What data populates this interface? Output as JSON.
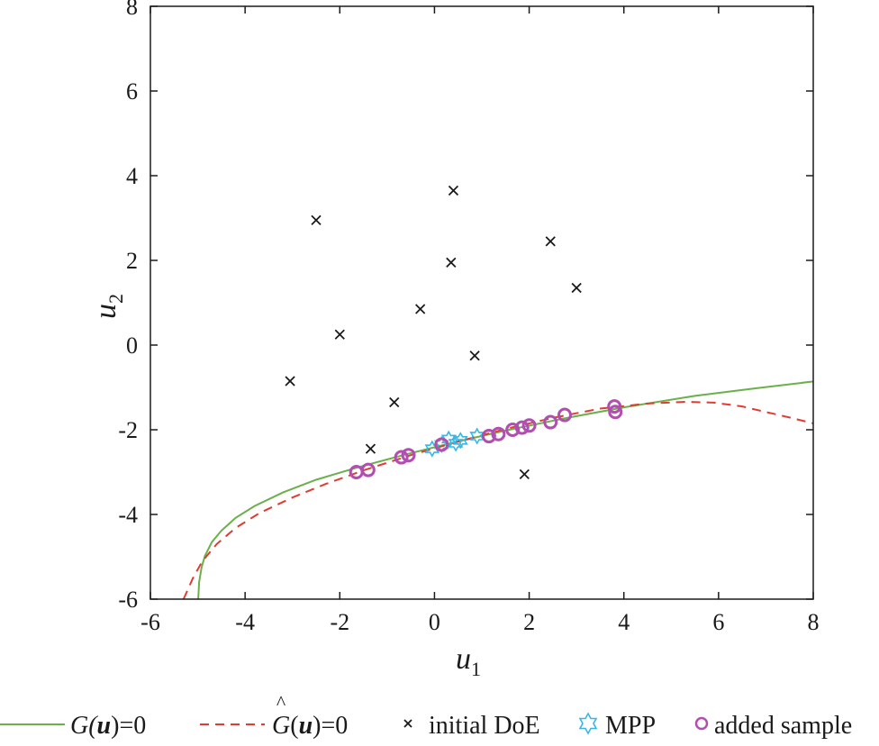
{
  "chart_data": {
    "type": "scatter",
    "xlabel": "u",
    "xlabel_sub": "1",
    "ylabel": "u",
    "ylabel_sub": "2",
    "xlim": [
      -6,
      8
    ],
    "ylim": [
      -6,
      8
    ],
    "xticks": [
      -6,
      -4,
      -2,
      0,
      2,
      4,
      6,
      8
    ],
    "yticks": [
      -6,
      -4,
      -2,
      0,
      2,
      4,
      6,
      8
    ],
    "xtick_labels": [
      "-6",
      "-4",
      "-2",
      "0",
      "2",
      "4",
      "6",
      "8"
    ],
    "ytick_labels": [
      "-6",
      "-4",
      "-2",
      "0",
      "2",
      "4",
      "6",
      "8"
    ],
    "grid": false,
    "legend_position": "bottom",
    "series": [
      {
        "name": "G(u)=0",
        "kind": "line",
        "style": "solid",
        "color": "#6ab04c",
        "x": [
          -4.99,
          -4.97,
          -4.92,
          -4.85,
          -4.7,
          -4.5,
          -4.2,
          -3.8,
          -3.2,
          -2.5,
          -1.6,
          -0.6,
          0.4,
          1.5,
          2.7,
          4.0,
          5.5,
          6.8,
          8.0
        ],
        "y": [
          -6.0,
          -5.6,
          -5.25,
          -4.98,
          -4.65,
          -4.38,
          -4.08,
          -3.8,
          -3.48,
          -3.18,
          -2.88,
          -2.58,
          -2.3,
          -2.02,
          -1.74,
          -1.47,
          -1.2,
          -1.02,
          -0.86
        ]
      },
      {
        "name": "Ĝ(u)=0",
        "kind": "line",
        "style": "dashed",
        "color": "#e03c31",
        "x": [
          -5.3,
          -5.1,
          -4.9,
          -4.6,
          -4.2,
          -3.7,
          -3.0,
          -2.3,
          -1.5,
          -0.5,
          0.5,
          1.5,
          2.5,
          3.5,
          4.5,
          5.3,
          5.9,
          6.5,
          7.0,
          7.5,
          8.0
        ],
        "y": [
          -6.0,
          -5.5,
          -5.1,
          -4.7,
          -4.32,
          -3.97,
          -3.6,
          -3.28,
          -2.96,
          -2.6,
          -2.28,
          -1.98,
          -1.72,
          -1.5,
          -1.38,
          -1.34,
          -1.36,
          -1.45,
          -1.58,
          -1.71,
          -1.85
        ]
      },
      {
        "name": "initial DoE",
        "kind": "marker",
        "marker": "x",
        "color": "#1a1a1a",
        "x": [
          0.4,
          -2.5,
          2.45,
          0.35,
          3.0,
          -0.3,
          -2.0,
          0.85,
          -3.05,
          -0.85,
          -1.35,
          1.9
        ],
        "y": [
          3.65,
          2.95,
          2.45,
          1.95,
          1.35,
          0.85,
          0.25,
          -0.25,
          -0.85,
          -1.35,
          -2.45,
          -3.05
        ]
      },
      {
        "name": "MPP",
        "kind": "marker",
        "marker": "hexagram",
        "color": "#35b8e6",
        "x": [
          -0.05,
          0.15,
          0.3,
          0.45,
          0.55,
          0.9
        ],
        "y": [
          -2.45,
          -2.35,
          -2.22,
          -2.32,
          -2.25,
          -2.15
        ]
      },
      {
        "name": "added sample",
        "kind": "marker",
        "marker": "circle",
        "color": "#b04fb0",
        "x": [
          -1.65,
          -1.4,
          -0.7,
          -0.55,
          0.15,
          1.15,
          1.35,
          1.65,
          1.85,
          2.0,
          2.45,
          2.75,
          3.8,
          3.82
        ],
        "y": [
          -3.0,
          -2.95,
          -2.65,
          -2.6,
          -2.35,
          -2.15,
          -2.1,
          -2.0,
          -1.95,
          -1.9,
          -1.82,
          -1.65,
          -1.45,
          -1.58
        ]
      }
    ]
  },
  "legend": {
    "items": [
      {
        "pre": "G(",
        "var": "u",
        "post": ")=0"
      },
      {
        "pre": "G",
        "var": "u",
        "post": ")=0",
        "hat": true
      },
      {
        "label": "initial DoE"
      },
      {
        "label": "MPP"
      },
      {
        "label": "added sample"
      }
    ]
  }
}
